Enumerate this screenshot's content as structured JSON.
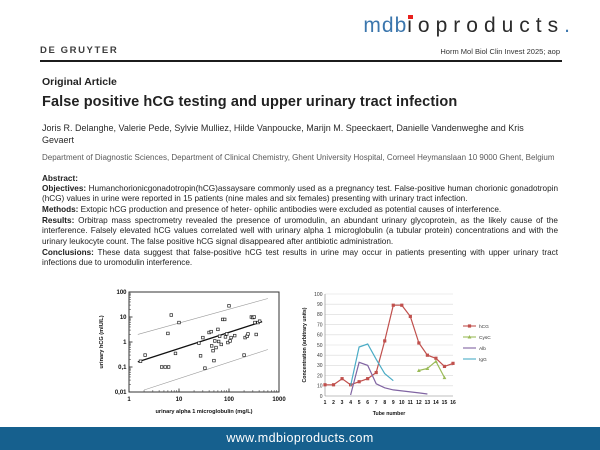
{
  "header": {
    "brand": {
      "part1": "mdb",
      "part2": "i",
      "part3": "oproducts",
      "dot": ".",
      "blue": "#3b76ad",
      "red": "#e8211d",
      "dark": "#2b2b2b"
    },
    "journal_ref": "Horm Mol Biol Clin Invest 2025; aop",
    "publisher": "DE GRUYTER"
  },
  "article": {
    "section_label": "Original Article",
    "title": "False positive hCG testing and upper urinary tract infection",
    "authors": "Joris R. Delanghe, Valerie Pede, Sylvie Mulliez, Hilde Vanpoucke, Marijn M. Speeckaert, Danielle Vandenweghe and Kris Gevaert",
    "affiliation": "Department of Diagnostic Sciences, Department of Clinical Chemistry, Ghent University Hospital, Corneel Heymanslaan 10 9000 Ghent, Belgium",
    "abstract_label": "Abstract:",
    "sections": [
      {
        "label": "Objectives:",
        "text": " Humanchorionicgonadotropin(hCG)assaysare commonly used as a pregnancy test. False-positive human chorionic gonadotropin (hCG) values in urine were reported in 15 patients (nine males and six females) presenting with urinary tract infection."
      },
      {
        "label": "Methods:",
        "text": " Extopic hCG production and presence of heter- ophilic antibodies were excluded as potential causes of interference."
      },
      {
        "label": "Results:",
        "text": " Orbitrap mass spectrometry revealed the presence of uromodulin, an abundant urinary glycoprotein, as the likely cause of the interference. Falsely elevated hCG values correlated well with urinary alpha 1 microglobulin (a tubular protein) concentrations and with the urinary leukocyte count. The false positive hCG signal disappeared after antibiotic administration."
      },
      {
        "label": "Conclusions:",
        "text": " These data suggest that false-positive hCG test results in urine may occur in patients presenting with upper urinary tract infections due to uromodulin interference."
      }
    ]
  },
  "footer": {
    "url": "www.mdbioproducts.com",
    "bg": "#16608e"
  },
  "chart_data": [
    {
      "type": "scatter",
      "title": "",
      "xlabel": "urinary alpha 1 microglobulin (mg/L)",
      "ylabel": "urinary hCG (mIU/L)",
      "xscale": "log",
      "yscale": "log",
      "xlim": [
        1,
        1000
      ],
      "ylim": [
        0.01,
        100
      ],
      "xticks": [
        "1",
        "10",
        "100",
        "1000"
      ],
      "yticks": [
        "100",
        "10",
        "1",
        "0,1",
        "0,01"
      ],
      "grid": false,
      "points": [
        [
          1.7,
          0.17
        ],
        [
          2.1,
          0.3
        ],
        [
          4.5,
          0.1
        ],
        [
          5.3,
          0.1
        ],
        [
          6.2,
          0.1
        ],
        [
          6,
          2.2
        ],
        [
          7,
          12
        ],
        [
          8.5,
          0.35
        ],
        [
          10,
          6
        ],
        [
          25,
          0.9
        ],
        [
          27,
          0.28
        ],
        [
          30,
          1.5
        ],
        [
          33,
          0.09
        ],
        [
          40,
          2.4
        ],
        [
          44,
          2.6
        ],
        [
          45,
          0.7
        ],
        [
          48,
          0.45
        ],
        [
          50,
          0.18
        ],
        [
          52,
          1.1
        ],
        [
          55,
          0.6
        ],
        [
          60,
          3.2
        ],
        [
          62,
          1.05
        ],
        [
          65,
          1.7
        ],
        [
          70,
          0.8
        ],
        [
          75,
          8
        ],
        [
          82,
          8
        ],
        [
          85,
          1.6
        ],
        [
          90,
          2.1
        ],
        [
          95,
          0.95
        ],
        [
          100,
          28
        ],
        [
          105,
          1.1
        ],
        [
          110,
          1.5
        ],
        [
          130,
          1.8
        ],
        [
          200,
          0.3
        ],
        [
          210,
          1.5
        ],
        [
          230,
          1.7
        ],
        [
          240,
          2.1
        ],
        [
          280,
          10
        ],
        [
          300,
          9.5
        ],
        [
          320,
          10
        ],
        [
          330,
          6
        ],
        [
          350,
          2
        ],
        [
          380,
          6
        ],
        [
          410,
          6.8
        ]
      ],
      "regression_line": [
        [
          1.5,
          0.16
        ],
        [
          460,
          6.5
        ]
      ],
      "ci_lines": [
        [
          [
            1.5,
            2
          ],
          [
            600,
            55
          ]
        ],
        [
          [
            2,
            0.012
          ],
          [
            600,
            0.5
          ]
        ]
      ]
    },
    {
      "type": "line",
      "title": "",
      "xlabel": "Tube number",
      "ylabel": "Concentration (arbitrary units)",
      "x": [
        1,
        2,
        3,
        4,
        5,
        6,
        7,
        8,
        9,
        10,
        11,
        12,
        13,
        14,
        15,
        16
      ],
      "ylim": [
        0,
        100
      ],
      "ytick_step": 10,
      "grid": true,
      "legend_position": "right",
      "series": [
        {
          "name": "hCG",
          "color": "#C0504D",
          "marker": "square",
          "values": [
            11,
            11,
            17,
            11,
            14,
            17,
            23,
            54,
            89,
            89,
            78,
            52,
            40,
            37,
            29,
            32
          ]
        },
        {
          "name": "CysC",
          "color": "#9BBB59",
          "marker": "triangle",
          "values": [
            null,
            null,
            null,
            null,
            null,
            null,
            null,
            null,
            null,
            null,
            null,
            25,
            27,
            34,
            18,
            null
          ]
        },
        {
          "name": "Alb",
          "color": "#8064A2",
          "marker": "none",
          "values": [
            null,
            null,
            null,
            1,
            33,
            30,
            12,
            8,
            6,
            5,
            4,
            3,
            2,
            null,
            null,
            null
          ]
        },
        {
          "name": "IgG",
          "color": "#4BACC6",
          "marker": "none",
          "values": [
            null,
            null,
            null,
            10,
            48,
            51,
            36,
            22,
            15,
            null,
            null,
            null,
            null,
            null,
            null,
            null
          ]
        }
      ]
    }
  ]
}
